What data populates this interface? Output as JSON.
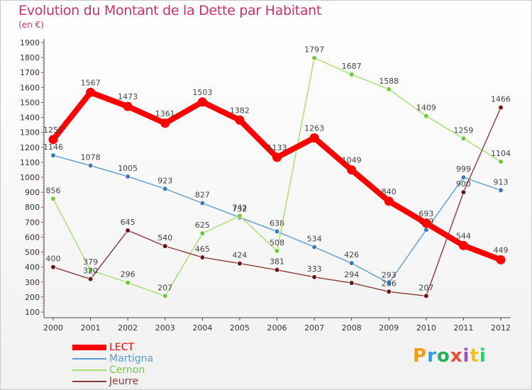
{
  "title": "Evolution du Montant de la Dette par Habitant",
  "unit": "(en €)",
  "logo": {
    "text": "Proxiti",
    "letter_colors": [
      "#f39c12",
      "#3498db",
      "#27ae60",
      "#e74c3c",
      "#9b59b6",
      "#f1c40f",
      "#2ecc71"
    ]
  },
  "chart_data": {
    "type": "line",
    "title": "Evolution du Montant de la Dette par Habitant",
    "ylabel": "(en €)",
    "xlabel": "",
    "categories": [
      "2000",
      "2001",
      "2002",
      "2003",
      "2004",
      "2005",
      "2006",
      "2007",
      "2008",
      "2009",
      "2010",
      "2011",
      "2012"
    ],
    "ylim": [
      100,
      1900
    ],
    "yticks": [
      "100",
      "200",
      "300",
      "400",
      "500",
      "600",
      "700",
      "800",
      "900",
      "1000",
      "1100",
      "1200",
      "1300",
      "1400",
      "1500",
      "1600",
      "1700",
      "1800",
      "1900"
    ],
    "grid": false,
    "legend_position": "bottom-left",
    "series": [
      {
        "name": "Martigna",
        "color": "#5b9bd5",
        "marker": "#3a7ac0",
        "values": [
          1146,
          1078,
          1005,
          923,
          827,
          732,
          638,
          534,
          426,
          293,
          649,
          999,
          913
        ],
        "labels": [
          "1146",
          "1078",
          "1005",
          "923",
          "827",
          "732",
          "638",
          "534",
          "426",
          "293",
          "649",
          "999",
          "913"
        ]
      },
      {
        "name": "Cernon",
        "color": "#a3e06c",
        "marker": "#70c93a",
        "values": [
          856,
          379,
          296,
          207,
          625,
          742,
          508,
          1797,
          1687,
          1588,
          1409,
          1259,
          1104
        ],
        "labels": [
          "856",
          "379",
          "296",
          "207",
          "625",
          "742",
          "508",
          "1797",
          "1687",
          "1588",
          "1409",
          "1259",
          "1104"
        ]
      },
      {
        "name": "Jeurre",
        "color": "#8b3a3a",
        "marker": "#6b1515",
        "values": [
          400,
          320,
          645,
          540,
          465,
          424,
          381,
          333,
          294,
          236,
          207,
          900,
          1466
        ],
        "labels": [
          "400",
          "320",
          "645",
          "540",
          "465",
          "424",
          "381",
          "333",
          "294",
          "236",
          "207",
          "900",
          "1466"
        ]
      },
      {
        "name": "LECT",
        "color": "#ff0000",
        "marker": "#ff0000",
        "values": [
          1252,
          1567,
          1473,
          1361,
          1503,
          1382,
          1133,
          1263,
          1049,
          840,
          693,
          544,
          449
        ],
        "labels": [
          "1252",
          "1567",
          "1473",
          "1361",
          "1503",
          "1382",
          "1133",
          "1263",
          "1049",
          "840",
          "693",
          "544",
          "449"
        ]
      }
    ]
  },
  "legend": [
    {
      "label": "LECT",
      "color": "#ff0000"
    },
    {
      "label": "Martigna",
      "color": "#5b9bd5"
    },
    {
      "label": "Cernon",
      "color": "#a3e06c"
    },
    {
      "label": "Jeurre",
      "color": "#8b3a3a"
    }
  ]
}
